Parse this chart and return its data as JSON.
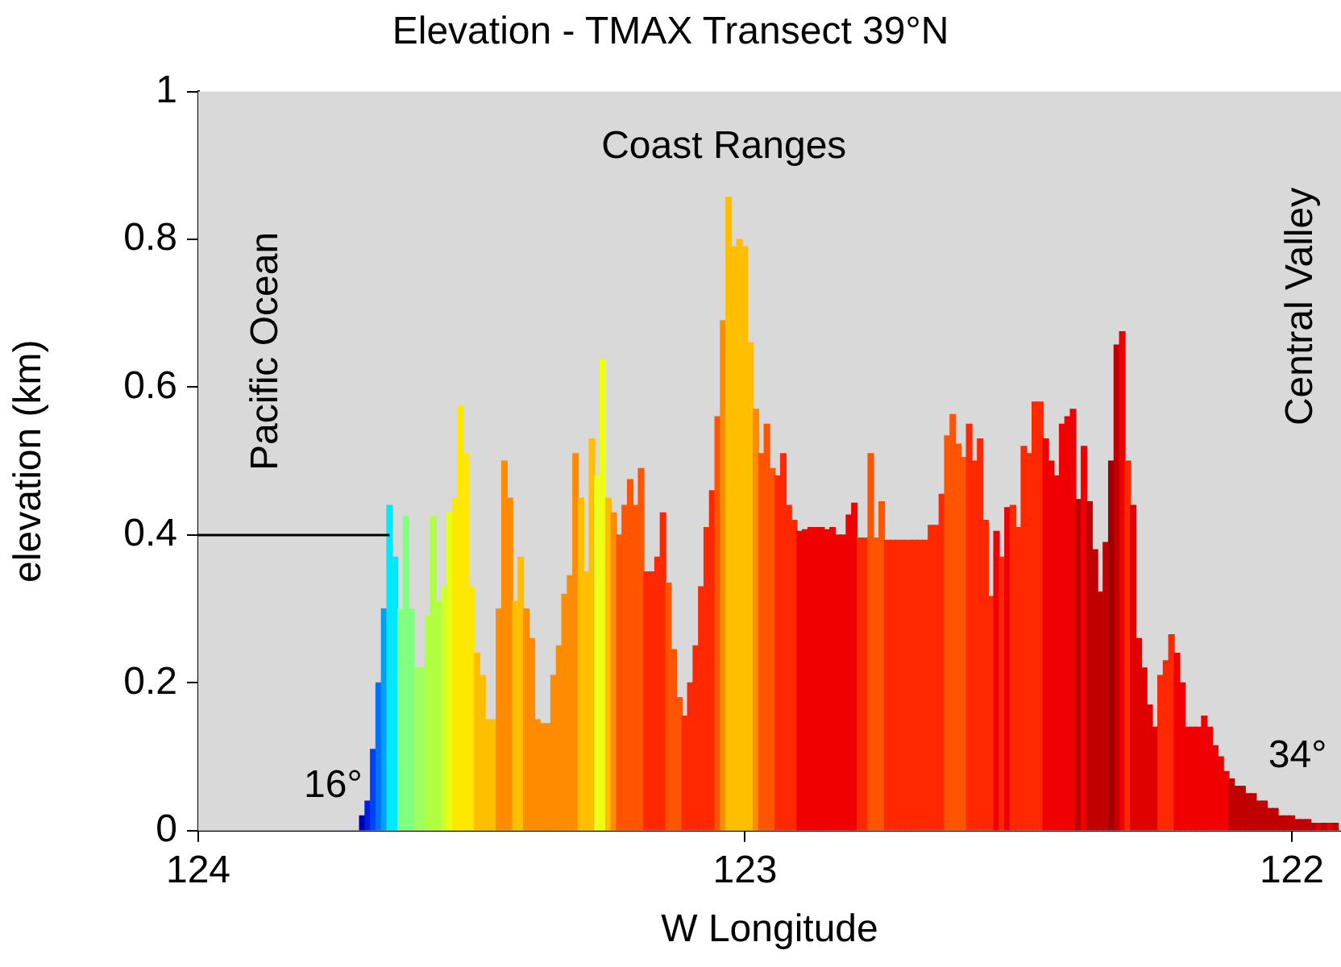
{
  "chart_data": {
    "type": "bar",
    "title": "Elevation - TMAX Transect 39°N",
    "xlabel": "W Longitude",
    "ylabel": "elevation (km)",
    "xlim": [
      124,
      121.91
    ],
    "xticks": [
      124,
      123,
      122
    ],
    "ylim": [
      0,
      1
    ],
    "yticks": [
      0,
      0.2,
      0.4,
      0.6,
      0.8,
      1
    ],
    "grid": false,
    "legend": false,
    "x": [
      123.7,
      123.69,
      123.68,
      123.67,
      123.66,
      123.65,
      123.64,
      123.63,
      123.62,
      123.61,
      123.6,
      123.59,
      123.58,
      123.57,
      123.56,
      123.55,
      123.54,
      123.53,
      123.52,
      123.51,
      123.5,
      123.49,
      123.48,
      123.47,
      123.46,
      123.45,
      123.44,
      123.43,
      123.42,
      123.41,
      123.4,
      123.39,
      123.38,
      123.37,
      123.36,
      123.35,
      123.34,
      123.33,
      123.32,
      123.31,
      123.3,
      123.29,
      123.28,
      123.27,
      123.26,
      123.25,
      123.24,
      123.23,
      123.22,
      123.21,
      123.2,
      123.19,
      123.18,
      123.17,
      123.16,
      123.15,
      123.14,
      123.13,
      123.12,
      123.11,
      123.1,
      123.09,
      123.08,
      123.07,
      123.06,
      123.05,
      123.04,
      123.03,
      123.02,
      123.01,
      123,
      122.99,
      122.98,
      122.97,
      122.96,
      122.95,
      122.94,
      122.93,
      122.92,
      122.91,
      122.9,
      122.89,
      122.88,
      122.87,
      122.86,
      122.85,
      122.84,
      122.83,
      122.82,
      122.81,
      122.8,
      122.79,
      122.78,
      122.77,
      122.76,
      122.75,
      122.74,
      122.73,
      122.72,
      122.71,
      122.7,
      122.69,
      122.68,
      122.67,
      122.66,
      122.65,
      122.64,
      122.63,
      122.62,
      122.61,
      122.6,
      122.59,
      122.58,
      122.57,
      122.56,
      122.55,
      122.54,
      122.53,
      122.52,
      122.51,
      122.5,
      122.49,
      122.48,
      122.47,
      122.46,
      122.45,
      122.44,
      122.43,
      122.42,
      122.41,
      122.4,
      122.39,
      122.38,
      122.37,
      122.36,
      122.35,
      122.34,
      122.33,
      122.32,
      122.31,
      122.3,
      122.29,
      122.28,
      122.27,
      122.26,
      122.25,
      122.24,
      122.23,
      122.22,
      122.21,
      122.2,
      122.19,
      122.18,
      122.17,
      122.16,
      122.15,
      122.14,
      122.13,
      122.12,
      122.11,
      122.1,
      122.09,
      122.08,
      122.07,
      122.06,
      122.05,
      122.04,
      122.03,
      122.02,
      122.01,
      122,
      121.99,
      121.98,
      121.97,
      121.96,
      121.95,
      121.94,
      121.93,
      121.92
    ],
    "values": [
      0.02,
      0.04,
      0.11,
      0.2,
      0.3,
      0.44,
      0.37,
      0.3,
      0.425,
      0.3,
      0.22,
      0.22,
      0.29,
      0.425,
      0.31,
      0.33,
      0.43,
      0.45,
      0.575,
      0.51,
      0.33,
      0.24,
      0.21,
      0.15,
      0.15,
      0.3,
      0.5,
      0.45,
      0.31,
      0.37,
      0.3,
      0.26,
      0.15,
      0.145,
      0.145,
      0.21,
      0.25,
      0.32,
      0.345,
      0.51,
      0.45,
      0.35,
      0.53,
      0.48,
      0.637,
      0.45,
      0.43,
      0.4,
      0.44,
      0.475,
      0.44,
      0.49,
      0.35,
      0.35,
      0.37,
      0.43,
      0.335,
      0.245,
      0.18,
      0.155,
      0.2,
      0.25,
      0.33,
      0.41,
      0.46,
      0.56,
      0.69,
      0.857,
      0.79,
      0.8,
      0.79,
      0.66,
      0.57,
      0.51,
      0.55,
      0.49,
      0.48,
      0.51,
      0.44,
      0.42,
      0.405,
      0.407,
      0.41,
      0.41,
      0.41,
      0.407,
      0.41,
      0.4,
      0.4,
      0.427,
      0.443,
      0.396,
      0.396,
      0.51,
      0.396,
      0.445,
      0.393,
      0.393,
      0.393,
      0.393,
      0.393,
      0.393,
      0.393,
      0.393,
      0.413,
      0.413,
      0.455,
      0.534,
      0.563,
      0.523,
      0.505,
      0.55,
      0.5,
      0.53,
      0.42,
      0.317,
      0.405,
      0.37,
      0.437,
      0.44,
      0.41,
      0.52,
      0.51,
      0.58,
      0.58,
      0.53,
      0.5,
      0.48,
      0.55,
      0.56,
      0.57,
      0.448,
      0.52,
      0.445,
      0.38,
      0.323,
      0.39,
      0.5,
      0.657,
      0.675,
      0.5,
      0.44,
      0.26,
      0.22,
      0.17,
      0.14,
      0.21,
      0.23,
      0.265,
      0.24,
      0.2,
      0.14,
      0.14,
      0.14,
      0.155,
      0.14,
      0.115,
      0.1,
      0.08,
      0.07,
      0.06,
      0.06,
      0.05,
      0.05,
      0.04,
      0.04,
      0.03,
      0.03,
      0.02,
      0.02,
      0.02,
      0.015,
      0.015,
      0.015,
      0.01,
      0.01,
      0.01,
      0.01,
      0.01
    ],
    "colors": [
      "#0000b0",
      "#0020e0",
      "#0040ff",
      "#0070ff",
      "#00a0ff",
      "#00e8ff",
      "#00e8ff",
      "#80ff80",
      "#80ff80",
      "#80ff80",
      "#a0ff60",
      "#a0ff60",
      "#b0ff40",
      "#b0ff40",
      "#b0ff40",
      "#d0ff30",
      "#e8ff10",
      "#ffe800",
      "#ffe800",
      "#ffe800",
      "#ffe800",
      "#ffbf00",
      "#ffbf00",
      "#ffbf00",
      "#ffbf00",
      "#ff8c00",
      "#ff8c00",
      "#ff8c00",
      "#ffbf00",
      "#ffbf00",
      "#ff8c00",
      "#ff8c00",
      "#ff8c00",
      "#ff8c00",
      "#ff8c00",
      "#ff8c00",
      "#ff8c00",
      "#ff8c00",
      "#ff8c00",
      "#ff8c00",
      "#ffbf00",
      "#ffbf00",
      "#ffbf00",
      "#e8ff20",
      "#f0ff10",
      "#ffbf00",
      "#ff8c00",
      "#ff5500",
      "#ff5500",
      "#ff5500",
      "#ff5500",
      "#ff5500",
      "#ff2800",
      "#ff2800",
      "#ff2800",
      "#ff2800",
      "#ff5500",
      "#ff5500",
      "#ff5500",
      "#ff2800",
      "#ff2800",
      "#ff2800",
      "#ff2800",
      "#ff2800",
      "#ff2800",
      "#ff5500",
      "#ff8c00",
      "#ffbf00",
      "#ffbf00",
      "#ffbf00",
      "#ffbf00",
      "#ffbf00",
      "#ff8c00",
      "#ff5500",
      "#ff5500",
      "#ff5500",
      "#ff2800",
      "#ff2800",
      "#ff2800",
      "#ff2800",
      "#f00000",
      "#f00000",
      "#f00000",
      "#f00000",
      "#f00000",
      "#f00000",
      "#f00000",
      "#f00000",
      "#f00000",
      "#f00000",
      "#f00000",
      "#ff2800",
      "#ff2800",
      "#ff5500",
      "#ff5500",
      "#ff5500",
      "#ff2800",
      "#ff2800",
      "#ff2800",
      "#ff2800",
      "#ff2800",
      "#ff2800",
      "#ff2800",
      "#ff2800",
      "#ff2800",
      "#ff2800",
      "#ff2800",
      "#ff5500",
      "#ff5500",
      "#ff5500",
      "#ff5500",
      "#ff2800",
      "#ff2800",
      "#ff2800",
      "#ff2800",
      "#ff2800",
      "#f00000",
      "#ff2800",
      "#f00000",
      "#ff2800",
      "#ff2800",
      "#ff2800",
      "#ff2800",
      "#ff2800",
      "#ff2800",
      "#f00000",
      "#f00000",
      "#f00000",
      "#f00000",
      "#f00000",
      "#f00000",
      "#c00000",
      "#f00000",
      "#c00000",
      "#c00000",
      "#c00000",
      "#c00000",
      "#a00000",
      "#c00000",
      "#f00000",
      "#ff2800",
      "#e00000",
      "#e00000",
      "#e00000",
      "#e00000",
      "#e00000",
      "#ff2800",
      "#ff2800",
      "#ff2800",
      "#f00000",
      "#f00000",
      "#f00000",
      "#f00000",
      "#f00000",
      "#f00000",
      "#f00000",
      "#f00000",
      "#f00000",
      "#f00000",
      "#c00000",
      "#c00000",
      "#c00000",
      "#c00000",
      "#c00000",
      "#c00000",
      "#c00000",
      "#c00000",
      "#c00000",
      "#c00000",
      "#c00000",
      "#c00000",
      "#c00000",
      "#c00000",
      "#c00000",
      "#c00000",
      "#e00000",
      "#c00000",
      "#e00000",
      "#c00000"
    ],
    "ref_lines": [
      {
        "axis": "y",
        "value": 0.4
      }
    ],
    "annotations": [
      "Pacific Ocean",
      "Coast Ranges",
      "Central Valley",
      "16°",
      "34°"
    ]
  }
}
